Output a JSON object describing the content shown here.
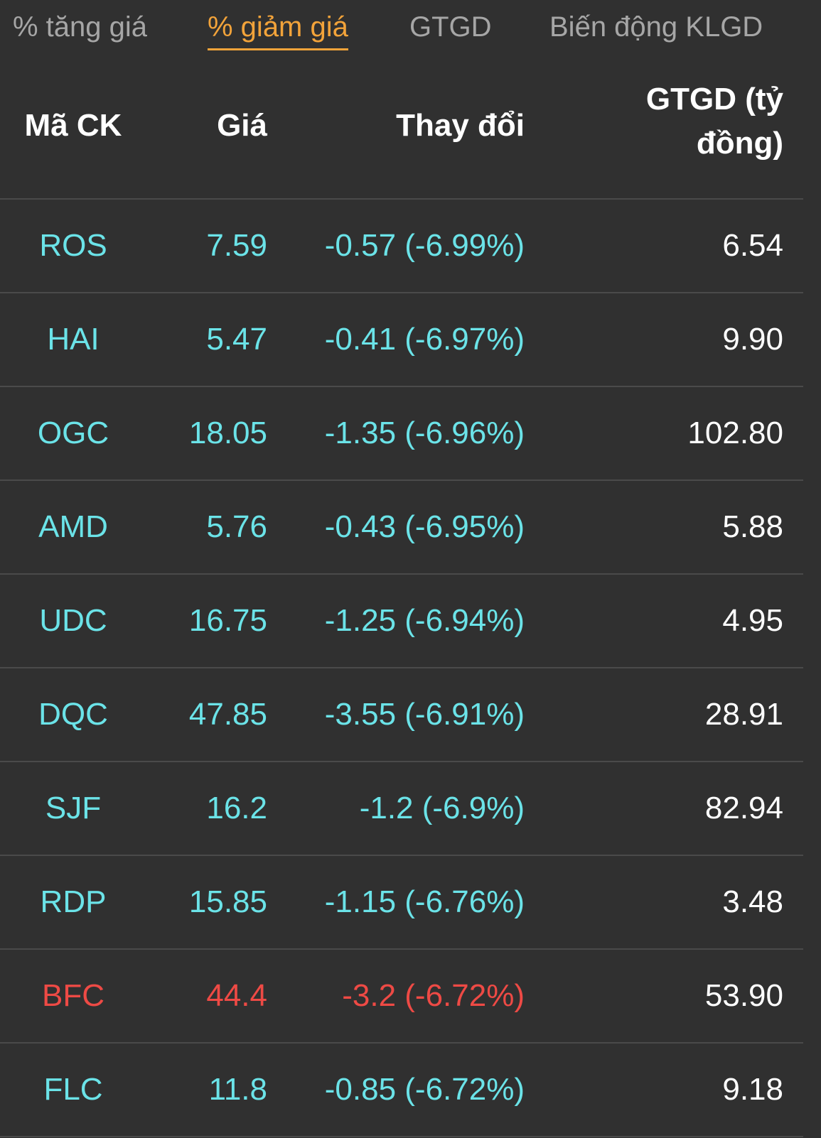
{
  "tabs": [
    {
      "label": "% tăng giá",
      "active": false
    },
    {
      "label": "% giảm giá",
      "active": true
    },
    {
      "label": "GTGD",
      "active": false
    },
    {
      "label": "Biến động KLGD",
      "active": false
    }
  ],
  "table": {
    "headers": {
      "code": "Mã CK",
      "price": "Giá",
      "change": "Thay đổi",
      "value": "GTGD (tỷ đồng)"
    },
    "rows": [
      {
        "code": "ROS",
        "price": "7.59",
        "change": "-0.57 (-6.99%)",
        "value": "6.54",
        "color": "#6be3e8"
      },
      {
        "code": "HAI",
        "price": "5.47",
        "change": "-0.41 (-6.97%)",
        "value": "9.90",
        "color": "#6be3e8"
      },
      {
        "code": "OGC",
        "price": "18.05",
        "change": "-1.35 (-6.96%)",
        "value": "102.80",
        "color": "#6be3e8"
      },
      {
        "code": "AMD",
        "price": "5.76",
        "change": "-0.43 (-6.95%)",
        "value": "5.88",
        "color": "#6be3e8"
      },
      {
        "code": "UDC",
        "price": "16.75",
        "change": "-1.25 (-6.94%)",
        "value": "4.95",
        "color": "#6be3e8"
      },
      {
        "code": "DQC",
        "price": "47.85",
        "change": "-3.55 (-6.91%)",
        "value": "28.91",
        "color": "#6be3e8"
      },
      {
        "code": "SJF",
        "price": "16.2",
        "change": "-1.2 (-6.9%)",
        "value": "82.94",
        "color": "#6be3e8"
      },
      {
        "code": "RDP",
        "price": "15.85",
        "change": "-1.15 (-6.76%)",
        "value": "3.48",
        "color": "#6be3e8"
      },
      {
        "code": "BFC",
        "price": "44.4",
        "change": "-3.2 (-6.72%)",
        "value": "53.90",
        "color": "#ee4a45"
      },
      {
        "code": "FLC",
        "price": "11.8",
        "change": "-0.85 (-6.72%)",
        "value": "9.18",
        "color": "#6be3e8"
      }
    ]
  },
  "colors": {
    "background": "#303030",
    "active_tab": "#f2a33a",
    "inactive_tab": "#a6a6a6",
    "floor_price": "#6be3e8",
    "decrease": "#ee4a45",
    "divider": "#4a4a4a"
  }
}
